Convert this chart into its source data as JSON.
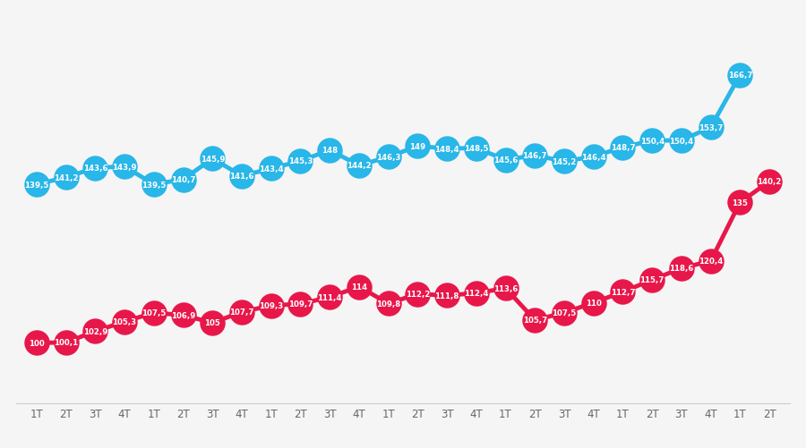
{
  "x_labels": [
    "1T",
    "2T",
    "3T",
    "4T",
    "1T",
    "2T",
    "3T",
    "4T",
    "1T",
    "2T",
    "3T",
    "4T",
    "1T",
    "2T",
    "3T",
    "4T",
    "1T",
    "2T",
    "3T",
    "4T",
    "1T",
    "2T",
    "3T",
    "4T",
    "1T",
    "2T"
  ],
  "blue_values": [
    139.5,
    141.2,
    143.6,
    143.9,
    139.5,
    140.7,
    145.9,
    141.6,
    143.4,
    145.3,
    148.0,
    144.2,
    146.3,
    149.0,
    148.4,
    148.5,
    145.6,
    146.7,
    145.2,
    146.4,
    148.7,
    150.4,
    150.4,
    153.7,
    166.7,
    null
  ],
  "red_values": [
    100.0,
    100.1,
    102.9,
    105.3,
    107.5,
    106.9,
    105.0,
    107.7,
    109.3,
    109.7,
    111.4,
    114.0,
    109.8,
    112.2,
    111.8,
    112.4,
    113.6,
    105.7,
    107.5,
    110.0,
    112.7,
    115.7,
    118.6,
    120.4,
    135.0,
    140.2
  ],
  "blue_color": "#29b6e8",
  "red_color": "#e8174a",
  "bg_color": "#f5f5f5",
  "grid_color": "#cccccc",
  "marker_size": 420,
  "line_width": 3.5,
  "label_fontsize": 6.2,
  "tick_fontsize": 8.5,
  "ylim_min": 85,
  "ylim_max": 180
}
